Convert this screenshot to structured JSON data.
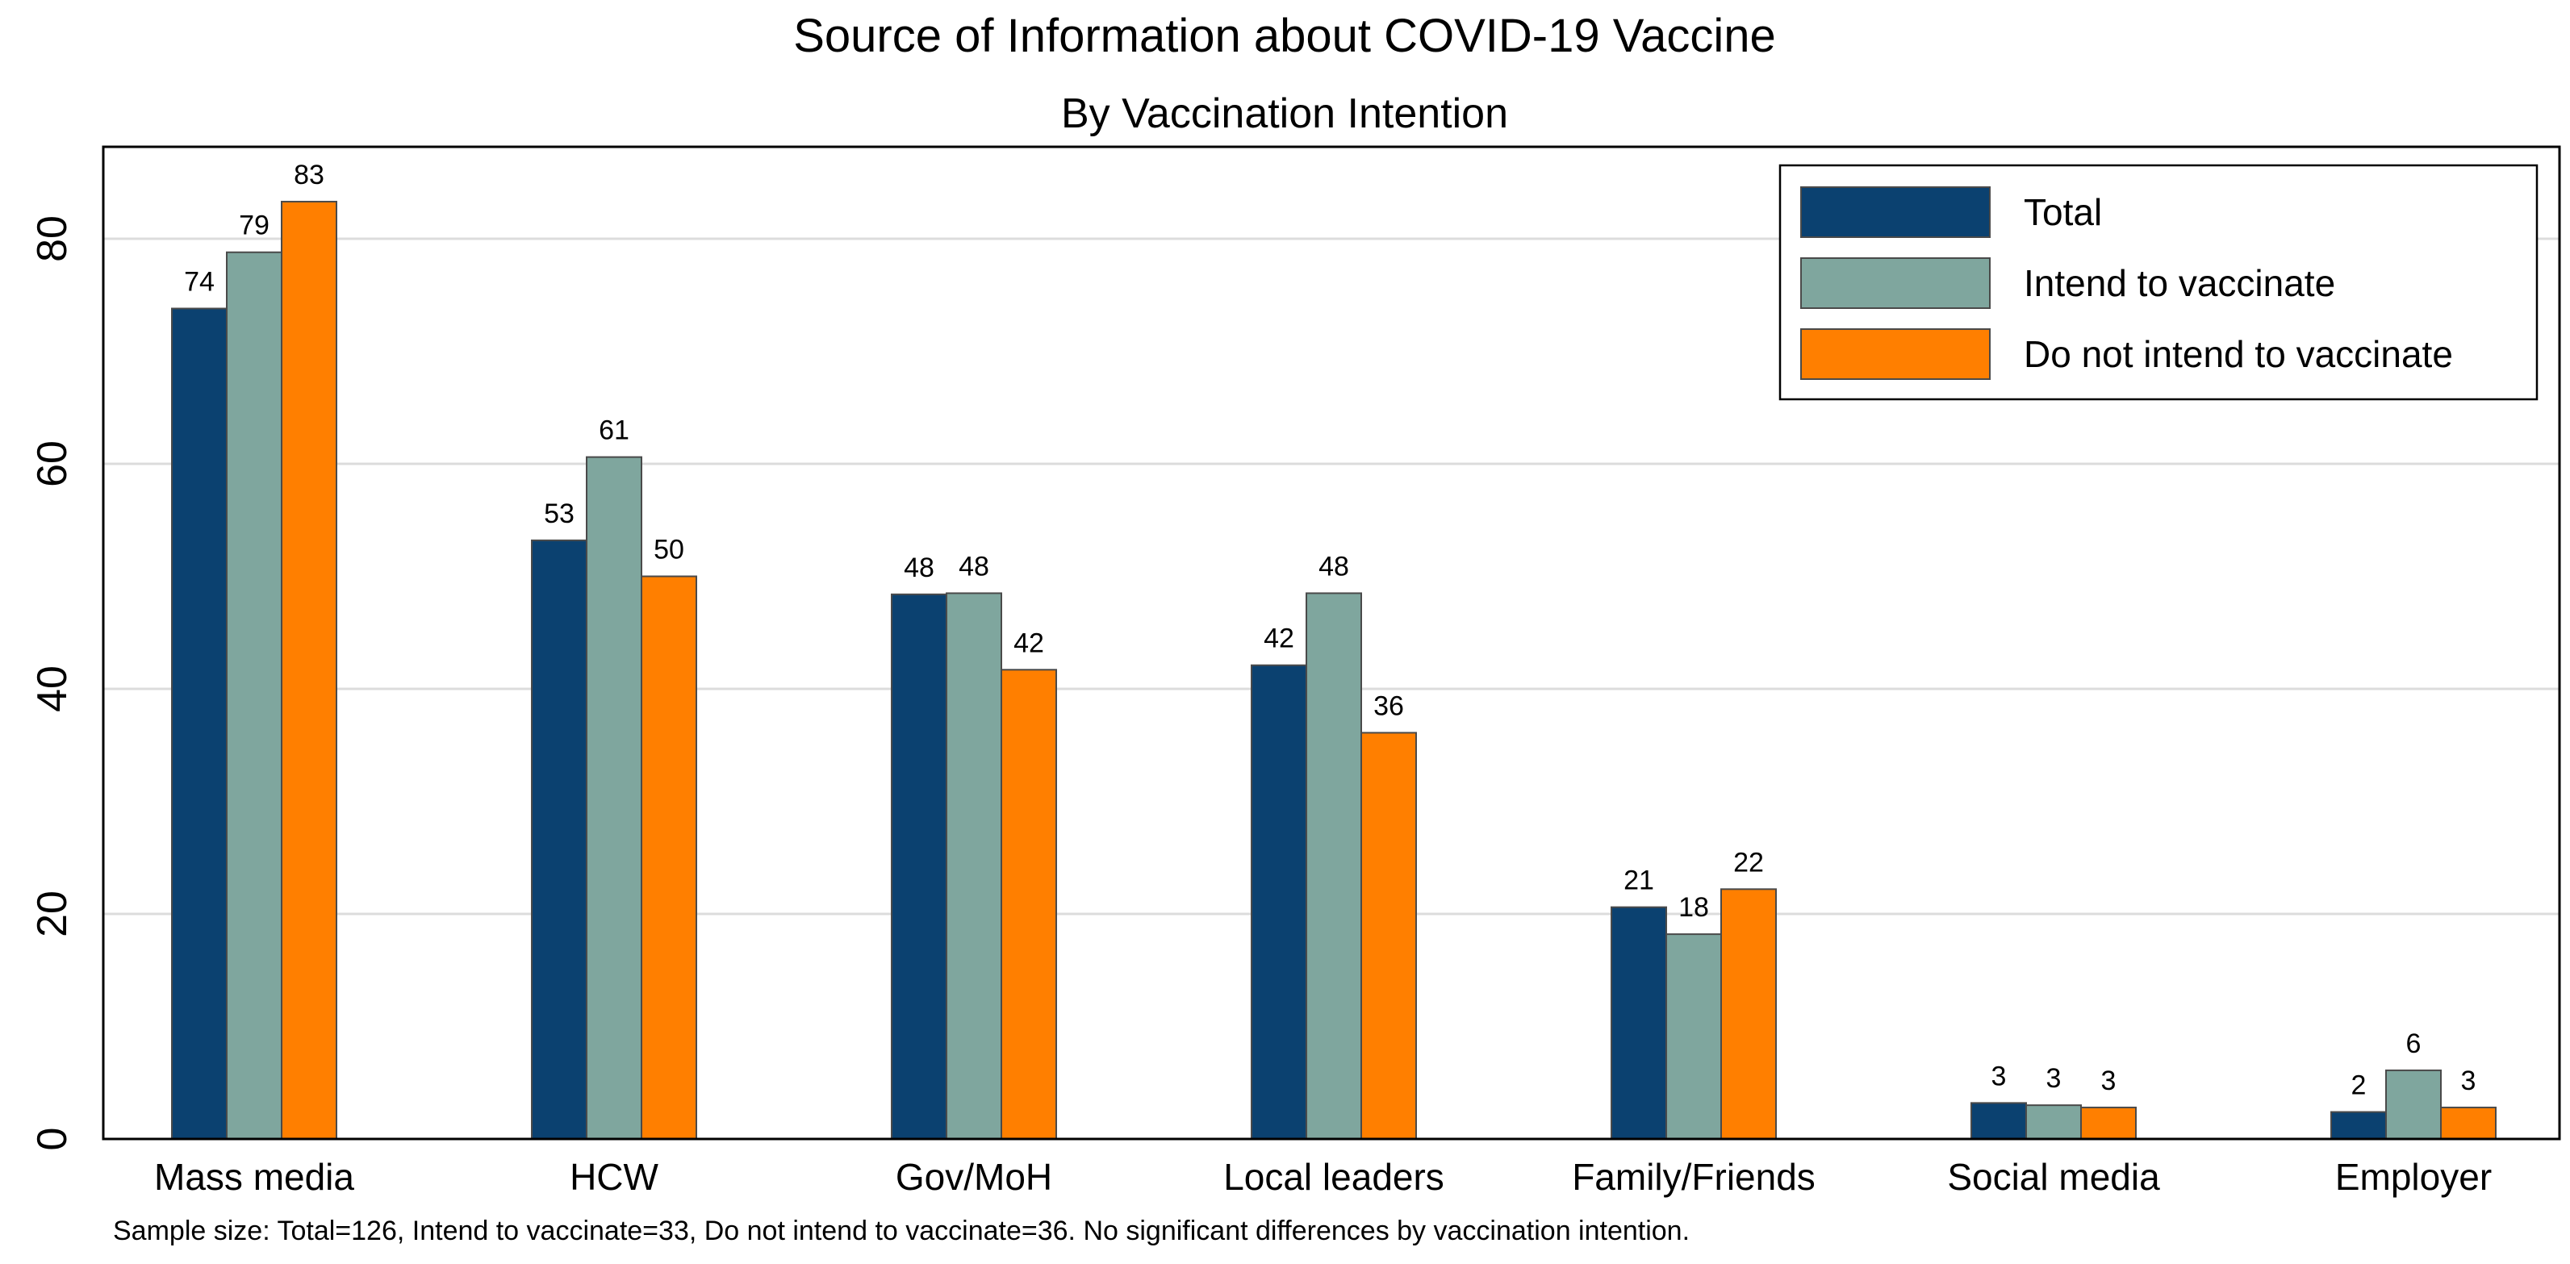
{
  "chart_data": {
    "type": "bar",
    "title": "Source of Information about COVID-19 Vaccine",
    "subtitle": "By Vaccination Intention",
    "xlabel": "",
    "ylabel": "",
    "ylim": [
      0,
      88
    ],
    "yticks": [
      0,
      20,
      40,
      60,
      80
    ],
    "grid": true,
    "legend_position": "top-right",
    "categories": [
      "Mass media",
      "HCW",
      "Gov/MoH",
      "Local leaders",
      "Family/Friends",
      "Social media",
      "Employer"
    ],
    "series": [
      {
        "name": "Total",
        "color": "#0b4170",
        "values": [
          73.8,
          53.2,
          48.4,
          42.1,
          20.6,
          3.2,
          2.4
        ],
        "labels": [
          "74",
          "53",
          "48",
          "42",
          "21",
          "3",
          "2"
        ]
      },
      {
        "name": "Intend to vaccinate",
        "color": "#7fa69e",
        "values": [
          78.8,
          60.6,
          48.5,
          48.5,
          18.2,
          3.0,
          6.1
        ],
        "labels": [
          "79",
          "61",
          "48",
          "48",
          "18",
          "3",
          "6"
        ]
      },
      {
        "name": "Do not intend to vaccinate",
        "color": "#ff7f00",
        "values": [
          83.3,
          50.0,
          41.7,
          36.1,
          22.2,
          2.8,
          2.8
        ],
        "labels": [
          "83",
          "50",
          "42",
          "36",
          "22",
          "3",
          "3"
        ]
      }
    ],
    "footnote": "Sample size: Total=126, Intend to vaccinate=33, Do not intend to vaccinate=36. No significant differences by vaccination intention."
  }
}
